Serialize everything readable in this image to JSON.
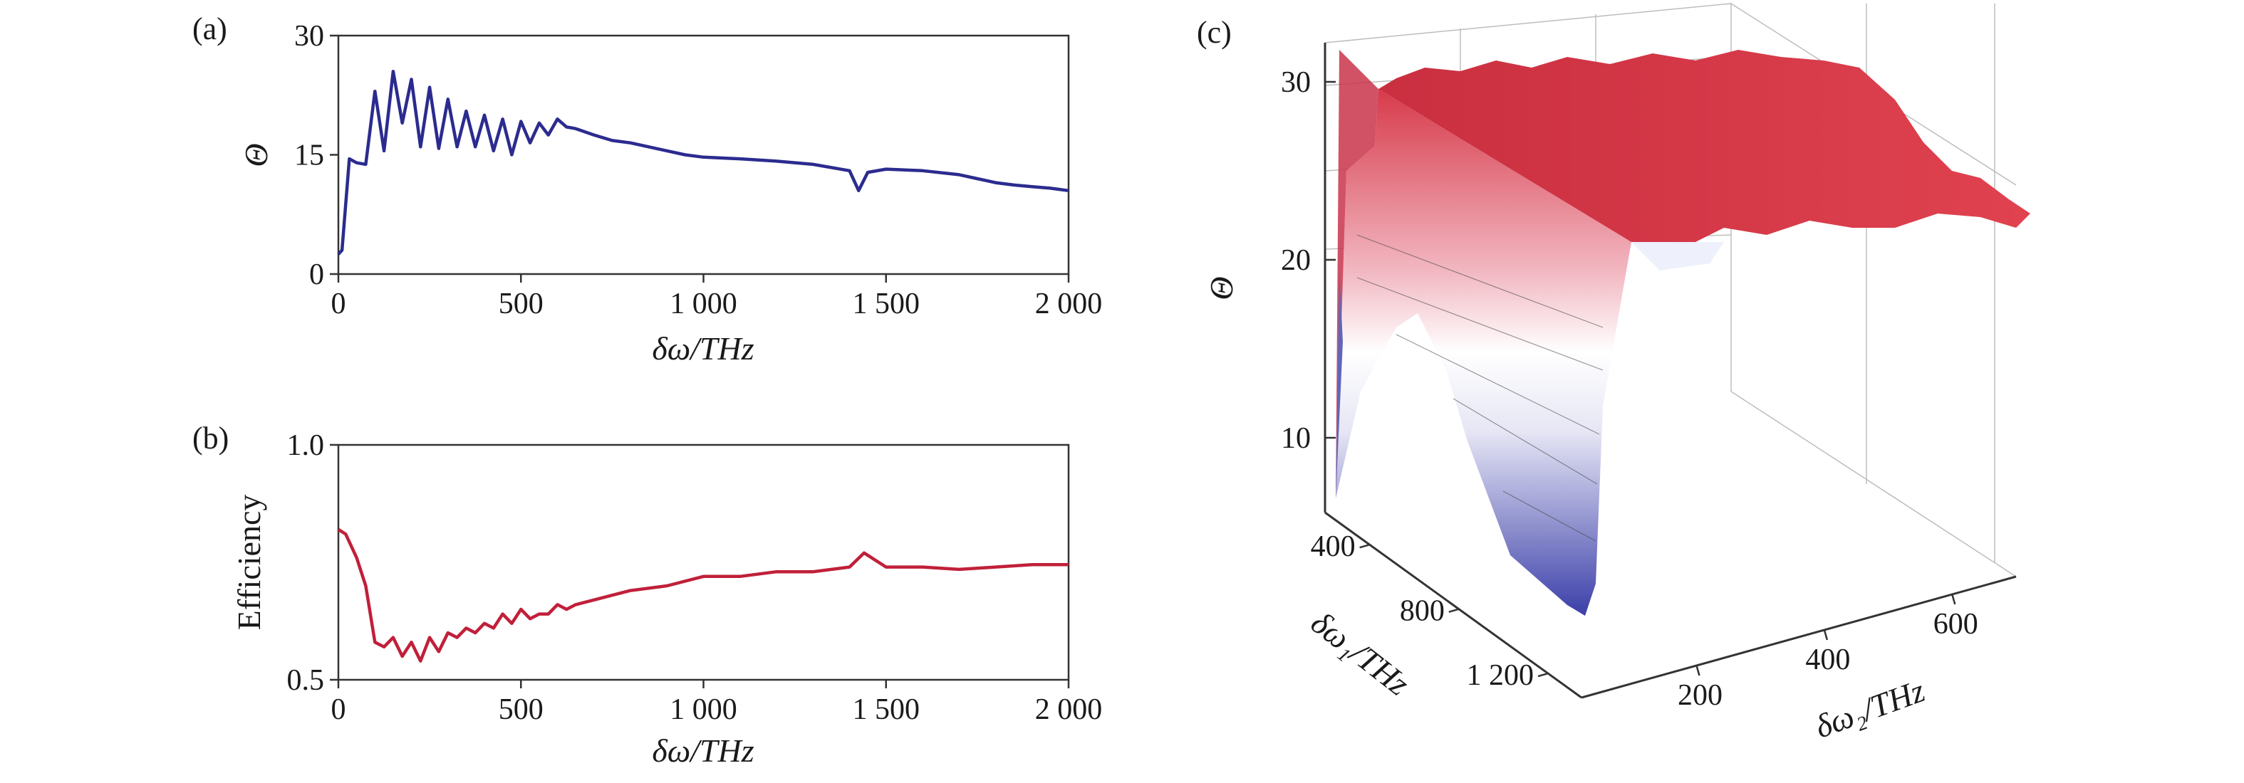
{
  "chart_data": [
    {
      "id": "a",
      "type": "line",
      "panel_label": "(a)",
      "xlabel": "δω/THz",
      "ylabel": "Θ",
      "xlim": [
        0,
        2000
      ],
      "ylim": [
        0,
        30
      ],
      "xticks": [
        0,
        500,
        1000,
        1500,
        2000
      ],
      "xtick_labels": [
        "0",
        "500",
        "1 000",
        "1 500",
        "2 000"
      ],
      "yticks": [
        0,
        15,
        30
      ],
      "ytick_labels": [
        "0",
        "15",
        "30"
      ],
      "color": "#2b2b8f",
      "series": [
        {
          "x": [
            0,
            10,
            30,
            50,
            75,
            100,
            125,
            150,
            175,
            200,
            225,
            250,
            275,
            300,
            325,
            350,
            375,
            400,
            425,
            450,
            475,
            500,
            525,
            550,
            575,
            600,
            625,
            650,
            700,
            750,
            800,
            850,
            900,
            950,
            1000,
            1100,
            1200,
            1300,
            1400,
            1425,
            1450,
            1500,
            1600,
            1700,
            1750,
            1800,
            1850,
            1900,
            1950,
            2000
          ],
          "y": [
            2.5,
            3.0,
            14.5,
            14.0,
            13.8,
            23.0,
            15.5,
            25.5,
            19.0,
            24.5,
            16.0,
            23.5,
            15.8,
            22.0,
            16.0,
            20.5,
            16.0,
            20.0,
            15.5,
            19.5,
            15.0,
            19.2,
            16.5,
            19.0,
            17.5,
            19.5,
            18.5,
            18.3,
            17.5,
            16.8,
            16.5,
            16.0,
            15.5,
            15.0,
            14.7,
            14.5,
            14.2,
            13.8,
            13.0,
            10.5,
            12.8,
            13.2,
            13.0,
            12.5,
            12.0,
            11.5,
            11.2,
            11.0,
            10.8,
            10.5
          ]
        }
      ]
    },
    {
      "id": "b",
      "type": "line",
      "panel_label": "(b)",
      "xlabel": "δω/THz",
      "ylabel": "Efficiency",
      "xlim": [
        0,
        2000
      ],
      "ylim": [
        0.5,
        1.0
      ],
      "xticks": [
        0,
        500,
        1000,
        1500,
        2000
      ],
      "xtick_labels": [
        "0",
        "500",
        "1 000",
        "1 500",
        "2 000"
      ],
      "yticks": [
        0.5,
        1.0
      ],
      "ytick_labels": [
        "0.5",
        "1.0"
      ],
      "color": "#c0203a",
      "series": [
        {
          "x": [
            0,
            20,
            50,
            75,
            100,
            125,
            150,
            175,
            200,
            225,
            250,
            275,
            300,
            325,
            350,
            375,
            400,
            425,
            450,
            475,
            500,
            525,
            550,
            575,
            600,
            625,
            650,
            700,
            750,
            800,
            900,
            1000,
            1100,
            1200,
            1300,
            1400,
            1440,
            1480,
            1500,
            1600,
            1700,
            1800,
            1900,
            2000
          ],
          "y": [
            0.82,
            0.81,
            0.76,
            0.7,
            0.58,
            0.57,
            0.59,
            0.55,
            0.58,
            0.54,
            0.59,
            0.56,
            0.6,
            0.59,
            0.61,
            0.6,
            0.62,
            0.61,
            0.64,
            0.62,
            0.65,
            0.63,
            0.64,
            0.64,
            0.66,
            0.65,
            0.66,
            0.67,
            0.68,
            0.69,
            0.7,
            0.72,
            0.72,
            0.73,
            0.73,
            0.74,
            0.77,
            0.75,
            0.74,
            0.74,
            0.735,
            0.74,
            0.745,
            0.745
          ]
        }
      ]
    },
    {
      "id": "c",
      "type": "surface3d",
      "panel_label": "(c)",
      "zlabel": "Θ",
      "xlabel": "δω₂/THz",
      "ylabel": "δω₁/THz",
      "zticks": [
        10,
        20,
        30
      ],
      "ztick_labels": [
        "10",
        "20",
        "30"
      ],
      "xticks": [
        200,
        400,
        600
      ],
      "xtick_labels": [
        "200",
        "400",
        "600"
      ],
      "yticks": [
        400,
        800,
        1200
      ],
      "ytick_labels": [
        "400",
        "800",
        "1 200"
      ],
      "colormap": [
        "#3b3fa8",
        "#ffffff",
        "#d73a4a"
      ]
    }
  ]
}
